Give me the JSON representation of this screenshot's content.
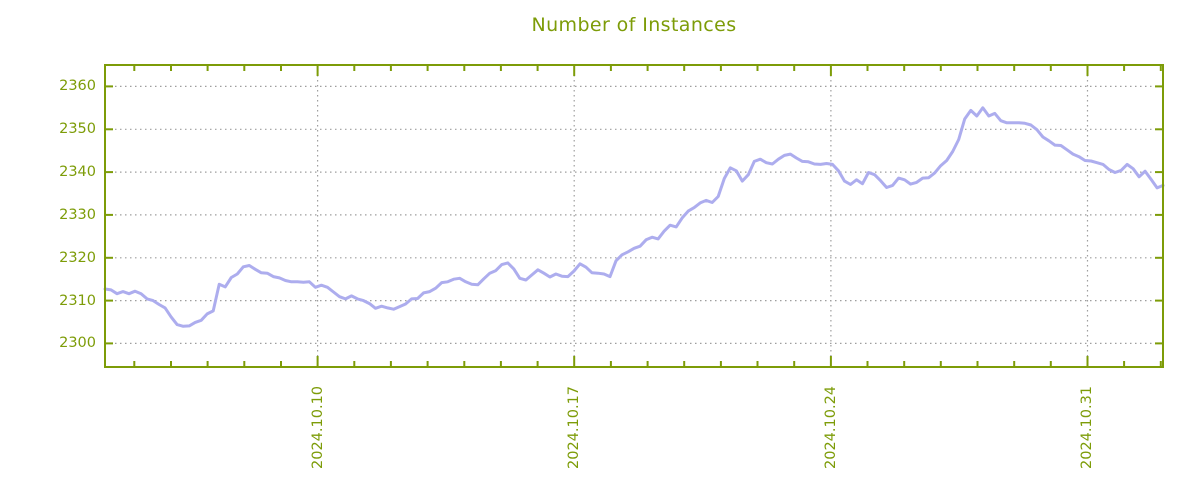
{
  "chart_data": {
    "type": "line",
    "title": "Number of Instances",
    "title_color": "#7d9c08",
    "axis_color": "#7d9c08",
    "line_color": "#adadee",
    "grid_color": "#9e9e9e",
    "grid_style": "dotted",
    "legend": "none",
    "ylabel": "",
    "xlabel": "",
    "ylim": [
      2294.5,
      2365.0
    ],
    "yticks": [
      2300,
      2310,
      2320,
      2330,
      2340,
      2350,
      2360
    ],
    "xlim_days": [
      -5.8,
      23.06
    ],
    "xticks": [
      {
        "day": 0,
        "label": "2024.10.10"
      },
      {
        "day": 7,
        "label": "2024.10.17"
      },
      {
        "day": 14,
        "label": "2024.10.24"
      },
      {
        "day": 21,
        "label": "2024.10.31"
      }
    ],
    "minor_xtick_every_days": 1,
    "series": [
      {
        "name": "instances",
        "x_start_day": -5.8,
        "x_step_day": 0.164,
        "values": [
          2312.7,
          2312.5,
          2311.6,
          2312.1,
          2311.6,
          2312.2,
          2311.6,
          2310.4,
          2310.0,
          2309.1,
          2308.3,
          2306.2,
          2304.4,
          2304.0,
          2304.1,
          2304.9,
          2305.4,
          2306.9,
          2307.6,
          2313.8,
          2313.2,
          2315.4,
          2316.2,
          2317.9,
          2318.2,
          2317.3,
          2316.5,
          2316.4,
          2315.6,
          2315.3,
          2314.7,
          2314.4,
          2314.4,
          2314.3,
          2314.4,
          2313.1,
          2313.6,
          2313.1,
          2312.0,
          2310.9,
          2310.4,
          2311.1,
          2310.4,
          2310.0,
          2309.3,
          2308.2,
          2308.7,
          2308.3,
          2308.0,
          2308.6,
          2309.2,
          2310.4,
          2310.5,
          2311.8,
          2312.1,
          2312.9,
          2314.2,
          2314.4,
          2315.0,
          2315.2,
          2314.4,
          2313.8,
          2313.7,
          2315.1,
          2316.4,
          2317.0,
          2318.4,
          2318.8,
          2317.4,
          2315.2,
          2314.8,
          2316.0,
          2317.2,
          2316.4,
          2315.5,
          2316.2,
          2315.7,
          2315.6,
          2316.9,
          2318.6,
          2317.8,
          2316.5,
          2316.4,
          2316.2,
          2315.6,
          2319.3,
          2320.7,
          2321.4,
          2322.2,
          2322.7,
          2324.2,
          2324.8,
          2324.4,
          2326.2,
          2327.6,
          2327.2,
          2329.3,
          2330.9,
          2331.7,
          2332.8,
          2333.4,
          2332.9,
          2334.3,
          2338.5,
          2341.0,
          2340.3,
          2337.9,
          2339.4,
          2342.5,
          2343.0,
          2342.2,
          2341.9,
          2343.0,
          2343.9,
          2344.2,
          2343.3,
          2342.5,
          2342.4,
          2341.9,
          2341.8,
          2342.0,
          2341.8,
          2340.3,
          2337.9,
          2337.1,
          2338.2,
          2337.3,
          2339.9,
          2339.4,
          2338.0,
          2336.4,
          2336.9,
          2338.6,
          2338.2,
          2337.2,
          2337.6,
          2338.6,
          2338.7,
          2339.8,
          2341.5,
          2342.7,
          2344.8,
          2347.6,
          2352.4,
          2354.4,
          2353.1,
          2355.0,
          2353.1,
          2353.7,
          2352.0,
          2351.5,
          2351.5,
          2351.5,
          2351.4,
          2351.0,
          2349.9,
          2348.2,
          2347.3,
          2346.3,
          2346.2,
          2345.2,
          2344.2,
          2343.6,
          2342.7,
          2342.6,
          2342.2,
          2341.8,
          2340.6,
          2339.9,
          2340.4,
          2341.8,
          2340.8,
          2338.9,
          2340.2,
          2338.3,
          2336.3,
          2336.9
        ]
      }
    ]
  }
}
